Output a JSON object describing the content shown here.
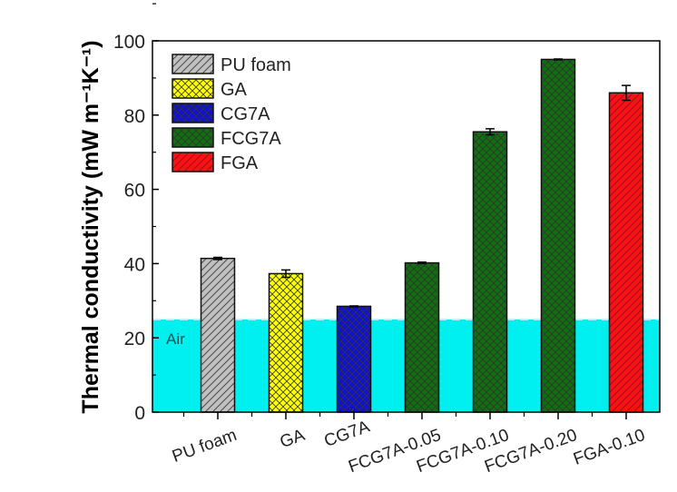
{
  "chart_data": {
    "type": "bar",
    "title": "",
    "xlabel": "",
    "ylabel": "Thermal conductivity (mW m⁻¹K⁻¹)",
    "ylim": [
      0,
      100
    ],
    "yticks": [
      0,
      20,
      40,
      60,
      80,
      100
    ],
    "grid": false,
    "legend_position": "top-left",
    "categories": [
      "PU foam",
      "GA",
      "CG7A",
      "FCG7A-0.05",
      "FCG7A-0.10",
      "FCG7A-0.20",
      "FGA-0.10"
    ],
    "values": [
      41.4,
      37.3,
      28.5,
      40.2,
      75.5,
      95.0,
      86.0
    ],
    "errors": [
      0.3,
      1.0,
      0.1,
      0.2,
      0.8,
      0.1,
      2.0
    ],
    "groups": [
      "PU foam",
      "GA",
      "CG7A",
      "FCG7A",
      "FCG7A",
      "FCG7A",
      "FGA"
    ],
    "legend": [
      {
        "name": "PU foam",
        "color": "#c0c0c0",
        "pattern": "diagonal"
      },
      {
        "name": "GA",
        "color": "#ffff00",
        "pattern": "crosshatch"
      },
      {
        "name": "CG7A",
        "color": "#1010d0",
        "pattern": "crosshatch"
      },
      {
        "name": "FCG7A",
        "color": "#107010",
        "pattern": "crosshatch"
      },
      {
        "name": "FGA",
        "color": "#ff1010",
        "pattern": "diagonal"
      }
    ],
    "reference": {
      "label": "Air",
      "value": 25,
      "color": "#00f0f0"
    }
  }
}
